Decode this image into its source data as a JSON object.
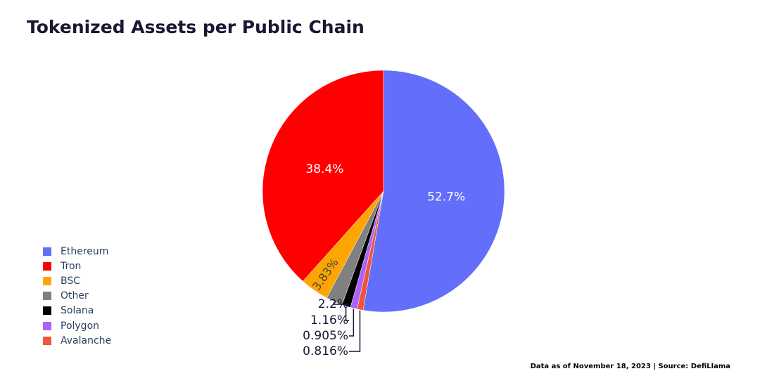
{
  "title": "Tokenized Assets per Public Chain",
  "source": "Data as of November 18, 2023 | Source: DefiLlama",
  "chart_data": {
    "type": "pie",
    "title": "Tokenized Assets per Public Chain",
    "legend_position": "bottom-left",
    "slices": [
      {
        "name": "Ethereum",
        "value": 52.7,
        "label": "52.7%",
        "color": "#636efa",
        "label_placement": "inside"
      },
      {
        "name": "Avalanche",
        "value": 0.816,
        "label": "0.816%",
        "color": "#ef553b",
        "label_placement": "outside"
      },
      {
        "name": "Polygon",
        "value": 0.905,
        "label": "0.905%",
        "color": "#ab63fa",
        "label_placement": "outside"
      },
      {
        "name": "Solana",
        "value": 1.16,
        "label": "1.16%",
        "color": "#000000",
        "label_placement": "outside"
      },
      {
        "name": "Other",
        "value": 2.2,
        "label": "2.2%",
        "color": "#808080",
        "label_placement": "outside"
      },
      {
        "name": "BSC",
        "value": 3.83,
        "label": "3.83%",
        "color": "#ffa500",
        "label_placement": "inside-rotated"
      },
      {
        "name": "Tron",
        "value": 38.4,
        "label": "38.4%",
        "color": "#ff0000",
        "label_placement": "inside"
      }
    ],
    "legend": [
      {
        "name": "Ethereum",
        "color": "#636efa"
      },
      {
        "name": "Tron",
        "color": "#ff0000"
      },
      {
        "name": "BSC",
        "color": "#ffa500"
      },
      {
        "name": "Other",
        "color": "#808080"
      },
      {
        "name": "Solana",
        "color": "#000000"
      },
      {
        "name": "Polygon",
        "color": "#ab63fa"
      },
      {
        "name": "Avalanche",
        "color": "#ef553b"
      }
    ]
  }
}
